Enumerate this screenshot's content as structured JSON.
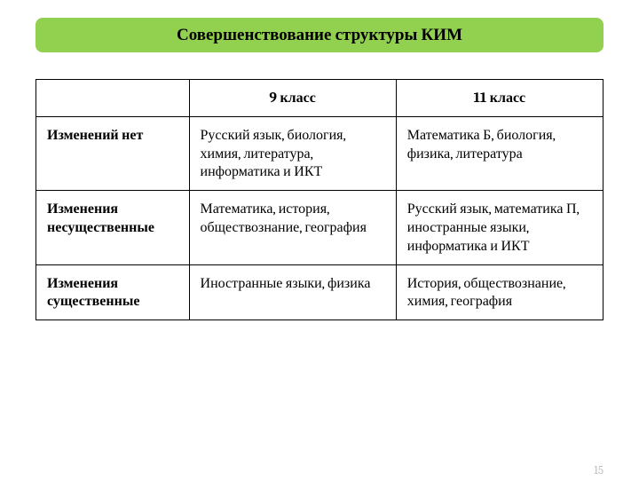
{
  "title": "Совершенствование структуры КИМ",
  "table": {
    "columns": [
      "",
      "9 класс",
      "11 класс"
    ],
    "rows": [
      {
        "label": "Изменений нет",
        "col1": "Русский язык, биология, химия, литература, информатика и ИКТ",
        "col2": "Математика Б, биология, физика, литература"
      },
      {
        "label": "Изменения несущественные",
        "col1": "Математика, история, обществознание, география",
        "col2": "Русский язык, математика П, иностранные языки, информатика и ИКТ"
      },
      {
        "label": "Изменения существенные",
        "col1": "Иностранные языки, физика",
        "col2": "История, обществознание, химия, география"
      }
    ]
  },
  "page_number": "15",
  "colors": {
    "title_bg": "#92d050",
    "border": "#000000",
    "text": "#000000",
    "page_num": "#bfbfbf",
    "background": "#ffffff"
  }
}
